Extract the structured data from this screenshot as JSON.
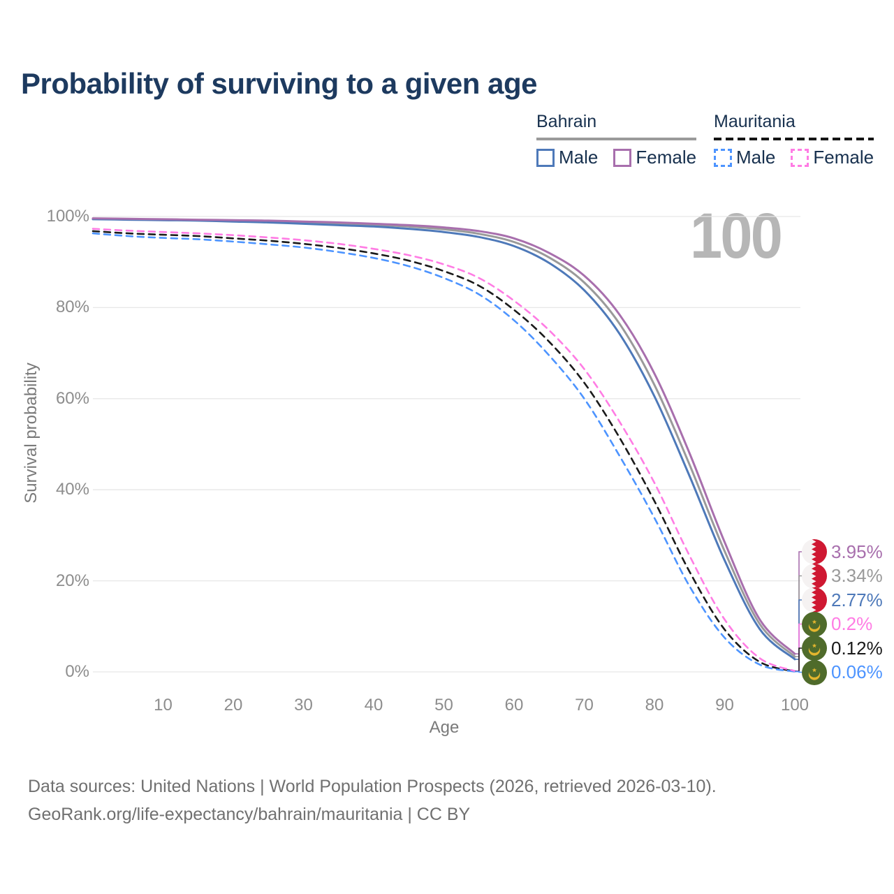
{
  "title": "Probability of surviving to a given age",
  "watermark": "100",
  "legend": {
    "groups": [
      {
        "label": "Bahrain",
        "rule_style": "solid",
        "items": [
          {
            "label": "Male",
            "color": "#4e79b9",
            "dashed": false
          },
          {
            "label": "Female",
            "color": "#a86fad",
            "dashed": false
          }
        ]
      },
      {
        "label": "Mauritania",
        "rule_style": "dashed",
        "items": [
          {
            "label": "Male",
            "color": "#4d94ff",
            "dashed": true
          },
          {
            "label": "Female",
            "color": "#ff7ce4",
            "dashed": true
          }
        ]
      }
    ]
  },
  "chart_data": {
    "type": "line",
    "title": "Probability of surviving to a given age",
    "xlabel": "Age",
    "ylabel": "Survival probability",
    "xlim": [
      0,
      100
    ],
    "ylim": [
      0,
      100
    ],
    "grid": true,
    "legend_position": "top-right",
    "xticks": [
      10,
      20,
      30,
      40,
      50,
      60,
      70,
      80,
      90,
      100
    ],
    "yticks": [
      {
        "value": 0,
        "label": "0%"
      },
      {
        "value": 20,
        "label": "20%"
      },
      {
        "value": 40,
        "label": "40%"
      },
      {
        "value": 60,
        "label": "60%"
      },
      {
        "value": 80,
        "label": "80%"
      },
      {
        "value": 100,
        "label": "100%"
      }
    ],
    "x": [
      0,
      5,
      10,
      15,
      20,
      25,
      30,
      35,
      40,
      45,
      50,
      55,
      60,
      65,
      70,
      75,
      80,
      85,
      90,
      95,
      100
    ],
    "series": [
      {
        "id": "mauritania_both",
        "name": "Mauritania Both sexes",
        "country": "Mauritania",
        "sex": "Both",
        "color": "#1a1a1a",
        "dashed": true,
        "values": [
          96.8,
          96.3,
          96.0,
          95.7,
          95.2,
          94.7,
          94.0,
          93.1,
          91.9,
          90.3,
          88.0,
          84.8,
          79.5,
          72.5,
          63.5,
          51.5,
          37.5,
          22.0,
          9.3,
          2.2,
          0.12
        ]
      },
      {
        "id": "mauritania_male",
        "name": "Mauritania Male",
        "country": "Mauritania",
        "sex": "Male",
        "color": "#4d94ff",
        "dashed": true,
        "values": [
          96.3,
          95.7,
          95.3,
          95.0,
          94.5,
          93.9,
          93.2,
          92.2,
          90.9,
          89.1,
          86.5,
          82.9,
          77.2,
          69.5,
          60.0,
          47.5,
          33.8,
          18.8,
          7.5,
          1.6,
          0.06
        ]
      },
      {
        "id": "mauritania_female",
        "name": "Mauritania Female",
        "country": "Mauritania",
        "sex": "Female",
        "color": "#ff7ce4",
        "dashed": true,
        "values": [
          97.3,
          96.9,
          96.6,
          96.3,
          95.9,
          95.4,
          94.8,
          94.0,
          92.9,
          91.5,
          89.5,
          86.5,
          81.5,
          75.0,
          66.5,
          55.0,
          41.5,
          25.5,
          11.5,
          3.0,
          0.2
        ]
      },
      {
        "id": "bahrain_both",
        "name": "Bahrain Both sexes",
        "country": "Bahrain",
        "sex": "Both",
        "color": "#9a9a9a",
        "dashed": false,
        "values": [
          99.5,
          99.4,
          99.3,
          99.2,
          99.1,
          98.9,
          98.7,
          98.5,
          98.2,
          97.8,
          97.2,
          96.2,
          94.4,
          91.0,
          85.5,
          76.5,
          63.0,
          45.5,
          26.5,
          10.5,
          3.34
        ]
      },
      {
        "id": "bahrain_male",
        "name": "Bahrain Male",
        "country": "Bahrain",
        "sex": "Male",
        "color": "#4e79b9",
        "dashed": false,
        "values": [
          99.4,
          99.3,
          99.2,
          99.1,
          98.9,
          98.7,
          98.4,
          98.1,
          97.8,
          97.3,
          96.6,
          95.5,
          93.5,
          89.8,
          83.8,
          74.3,
          60.5,
          43.0,
          24.5,
          9.4,
          2.77
        ]
      },
      {
        "id": "bahrain_female",
        "name": "Bahrain Female",
        "country": "Bahrain",
        "sex": "Female",
        "color": "#a86fad",
        "dashed": false,
        "values": [
          99.6,
          99.5,
          99.4,
          99.3,
          99.2,
          99.1,
          98.9,
          98.7,
          98.4,
          98.1,
          97.6,
          96.8,
          95.2,
          92.0,
          87.0,
          78.5,
          65.5,
          48.0,
          28.5,
          11.5,
          3.95
        ]
      }
    ],
    "end_labels": [
      {
        "series_id": "bahrain_female",
        "text": "3.95%",
        "color": "#a86fad",
        "flag": "bahrain"
      },
      {
        "series_id": "bahrain_both",
        "text": "3.34%",
        "color": "#9a9a9a",
        "flag": "bahrain"
      },
      {
        "series_id": "bahrain_male",
        "text": "2.77%",
        "color": "#4e79b9",
        "flag": "bahrain"
      },
      {
        "series_id": "mauritania_female",
        "text": "0.2%",
        "color": "#ff7ce4",
        "flag": "mauritania"
      },
      {
        "series_id": "mauritania_both",
        "text": "0.12%",
        "color": "#1a1a1a",
        "flag": "mauritania"
      },
      {
        "series_id": "mauritania_male",
        "text": "0.06%",
        "color": "#4d94ff",
        "flag": "mauritania"
      }
    ]
  },
  "flags": {
    "bahrain": {
      "red": "#cf1832",
      "white": "#f5f2f2"
    },
    "mauritania": {
      "green": "#4f6b2b",
      "gold": "#e3b52e"
    }
  },
  "footer": {
    "line1": "Data sources: United Nations | World Population Prospects (2026, retrieved 2026-03-10).",
    "line2": "GeoRank.org/life-expectancy/bahrain/mauritania | CC BY"
  }
}
